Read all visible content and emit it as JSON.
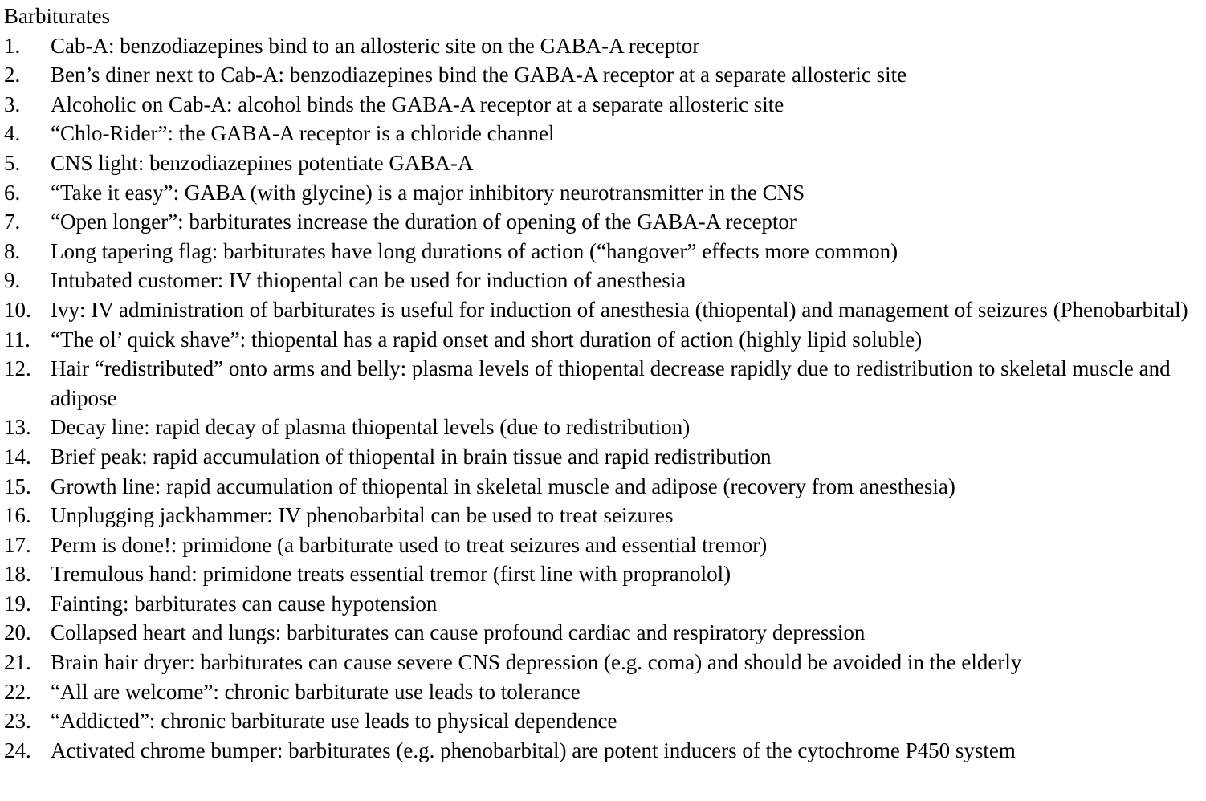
{
  "document": {
    "title": "Barbiturates",
    "items": [
      {
        "num": "1.",
        "text": "Cab-A: benzodiazepines bind to an allosteric site on the GABA-A receptor"
      },
      {
        "num": "2.",
        "text": "Ben’s diner next to Cab-A: benzodiazepines bind the GABA-A receptor at a separate allosteric site"
      },
      {
        "num": "3.",
        "text": "Alcoholic on Cab-A: alcohol binds the GABA-A receptor at a separate allosteric site"
      },
      {
        "num": "4.",
        "text": "“Chlo-Rider”: the GABA-A receptor is a chloride channel"
      },
      {
        "num": "5.",
        "text": "CNS light: benzodiazepines potentiate GABA-A"
      },
      {
        "num": "6.",
        "text": "“Take it easy”: GABA (with glycine) is a major inhibitory neurotransmitter in the CNS"
      },
      {
        "num": "7.",
        "text": "“Open longer”: barbiturates increase the duration of opening of the GABA-A receptor"
      },
      {
        "num": "8.",
        "text": "Long tapering flag: barbiturates have long durations of action (“hangover” effects more common)"
      },
      {
        "num": "9.",
        "text": "Intubated customer: IV thiopental can be used for induction of anesthesia"
      },
      {
        "num": "10.",
        "text": "Ivy: IV administration of barbiturates is useful for induction of anesthesia (thiopental) and management of seizures (Phenobarbital)"
      },
      {
        "num": "11.",
        "text": "“The ol’ quick shave”: thiopental has a rapid onset and short duration of action (highly lipid soluble)"
      },
      {
        "num": "12.",
        "text": "Hair “redistributed” onto arms and belly: plasma levels of thiopental decrease rapidly due to redistribution to skeletal muscle and adipose"
      },
      {
        "num": "13.",
        "text": "Decay line: rapid decay of plasma thiopental levels (due to redistribution)"
      },
      {
        "num": "14.",
        "text": "Brief peak: rapid accumulation of thiopental in brain tissue and rapid redistribution"
      },
      {
        "num": "15.",
        "text": "Growth line: rapid accumulation of thiopental in skeletal muscle and adipose (recovery from anesthesia)"
      },
      {
        "num": "16.",
        "text": "Unplugging jackhammer: IV phenobarbital can be used to treat seizures"
      },
      {
        "num": "17.",
        "text": "Perm is done!: primidone (a barbiturate used to treat seizures and essential tremor)"
      },
      {
        "num": "18.",
        "text": "Tremulous hand: primidone treats essential tremor (first line with propranolol)"
      },
      {
        "num": "19.",
        "text": "Fainting: barbiturates can cause hypotension"
      },
      {
        "num": "20.",
        "text": "Collapsed heart and lungs: barbiturates can cause profound cardiac and respiratory depression"
      },
      {
        "num": "21.",
        "text": "Brain hair dryer: barbiturates can cause severe CNS depression (e.g. coma) and should be avoided in the elderly"
      },
      {
        "num": "22.",
        "text": "“All are welcome”: chronic barbiturate use leads to tolerance"
      },
      {
        "num": "23.",
        "text": "“Addicted”: chronic barbiturate use leads to physical dependence"
      },
      {
        "num": "24.",
        "text": "Activated chrome bumper: barbiturates (e.g. phenobarbital) are potent inducers of the cytochrome P450 system"
      }
    ]
  }
}
